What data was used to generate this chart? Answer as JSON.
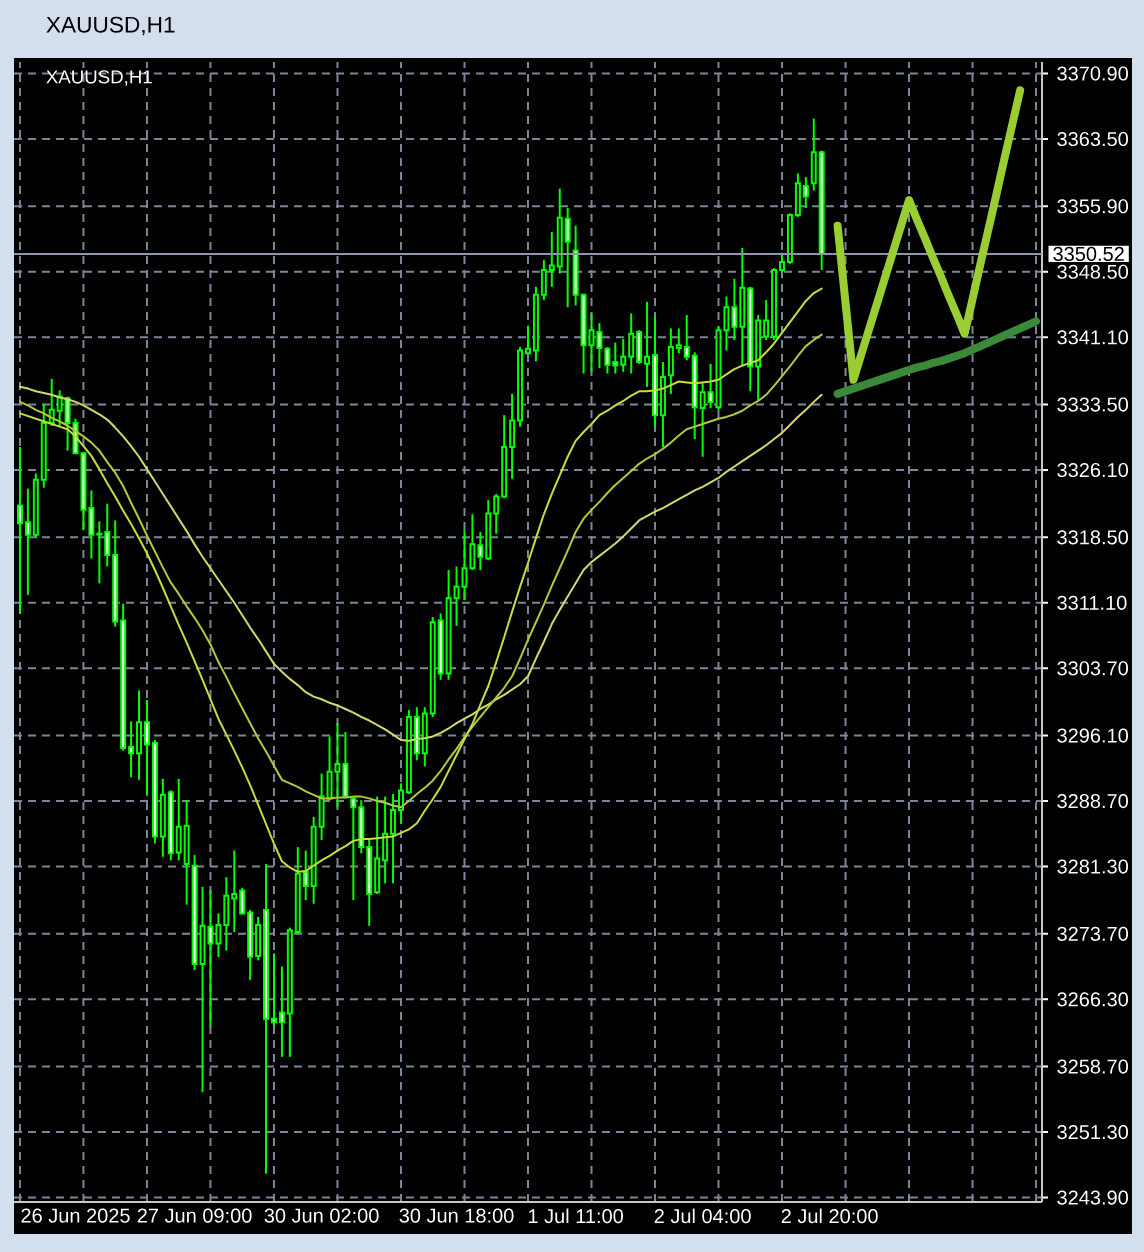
{
  "chart_data": {
    "type": "candlestick",
    "title": "XAUUSD,H1",
    "subtitle": "XAUUSD,H1",
    "color": "#00ff00",
    "categories": [
      null,
      null,
      null,
      null,
      null,
      null,
      null,
      "26 Jun 2025",
      null,
      null,
      null,
      null,
      null,
      null,
      null,
      null,
      null,
      null,
      null,
      null,
      null,
      null,
      "27 Jun 09:00",
      null,
      null,
      null,
      null,
      null,
      null,
      null,
      null,
      null,
      null,
      null,
      null,
      null,
      null,
      null,
      "30 Jun 02:00",
      null,
      null,
      null,
      null,
      null,
      null,
      null,
      null,
      null,
      null,
      null,
      null,
      null,
      null,
      null,
      null,
      "30 Jun 18:00",
      null,
      null,
      null,
      null,
      null,
      null,
      null,
      null,
      null,
      null,
      null,
      null,
      null,
      null,
      "1 Jul 11:00",
      null,
      null,
      null,
      null,
      null,
      null,
      null,
      null,
      null,
      null,
      null,
      null,
      null,
      null,
      null,
      "2 Jul 04:00",
      null,
      null,
      null,
      null,
      null,
      null,
      null,
      null,
      null,
      null,
      null,
      null,
      null,
      null,
      null,
      "2 Jul 20:00",
      null,
      null,
      null,
      null,
      null,
      null,
      null,
      null,
      null,
      null,
      null,
      null,
      null,
      null,
      null,
      null,
      null,
      null,
      null,
      null,
      null,
      null,
      null,
      null,
      null,
      null
    ],
    "ohlc": [
      [
        3322.1,
        3328.7,
        3309.9,
        3320.1
      ],
      [
        3320.2,
        3324.0,
        3312.0,
        3318.8
      ],
      [
        3318.8,
        3325.7,
        3318.4,
        3325.0
      ],
      [
        3325.0,
        3333.6,
        3324.1,
        3331.4
      ],
      [
        3331.4,
        3336.4,
        3331.1,
        3332.9
      ],
      [
        3332.8,
        3335.1,
        3331.0,
        3334.4
      ],
      [
        3334.2,
        3334.4,
        3328.3,
        3331.4
      ],
      [
        3331.4,
        3331.9,
        3327.9,
        3328.0
      ],
      [
        3328.0,
        3328.1,
        3319.3,
        3321.6
      ],
      [
        3321.8,
        3323.8,
        3316.1,
        3318.8
      ],
      [
        3318.9,
        3320.3,
        3313.3,
        3318.8
      ],
      [
        3319.1,
        3322.3,
        3315.2,
        3316.5
      ],
      [
        3316.5,
        3320.4,
        3308.4,
        3309.0
      ],
      [
        3309.1,
        3311.0,
        3294.4,
        3294.7
      ],
      [
        3294.8,
        3297.7,
        3291.4,
        3294.1
      ],
      [
        3294.1,
        3301.2,
        3291.1,
        3297.6
      ],
      [
        3297.6,
        3300.1,
        3289.5,
        3295.1
      ],
      [
        3295.3,
        3295.6,
        3283.9,
        3284.7
      ],
      [
        3284.7,
        3291.2,
        3282.4,
        3289.4
      ],
      [
        3289.7,
        3289.9,
        3282.0,
        3282.8
      ],
      [
        3282.9,
        3291.2,
        3282.0,
        3285.8
      ],
      [
        3281.6,
        3288.8,
        3277.0,
        3285.9
      ],
      [
        3281.4,
        3282.6,
        3269.6,
        3270.3
      ],
      [
        3270.3,
        3279.0,
        3255.8,
        3274.6
      ],
      [
        3274.5,
        3278.6,
        3263.2,
        3272.6
      ],
      [
        3272.6,
        3276.0,
        3271.1,
        3274.7
      ],
      [
        3274.7,
        3280.1,
        3271.8,
        3278.0
      ],
      [
        3277.7,
        3283.1,
        3273.9,
        3278.2
      ],
      [
        3278.6,
        3278.9,
        3275.9,
        3276.0
      ],
      [
        3276.1,
        3276.4,
        3268.5,
        3271.1
      ],
      [
        3271.2,
        3275.6,
        3270.7,
        3274.7
      ],
      [
        3276.4,
        3281.6,
        3246.6,
        3264.1
      ],
      [
        3264.1,
        3271.5,
        3263.2,
        3263.7
      ],
      [
        3264.8,
        3270.0,
        3259.8,
        3263.7
      ],
      [
        3264.7,
        3274.4,
        3259.8,
        3274.1
      ],
      [
        3273.9,
        3283.5,
        3273.7,
        3280.5
      ],
      [
        3280.7,
        3283.1,
        3277.5,
        3279.1
      ],
      [
        3279.1,
        3286.9,
        3277.1,
        3285.8
      ],
      [
        3285.8,
        3291.8,
        3284.3,
        3289.2
      ],
      [
        3289.0,
        3296.0,
        3288.8,
        3292.0
      ],
      [
        3292.0,
        3297.5,
        3288.0,
        3292.9
      ],
      [
        3292.9,
        3296.5,
        3289.0,
        3289.2
      ],
      [
        3289.0,
        3289.2,
        3277.5,
        3288.0
      ],
      [
        3288.0,
        3288.8,
        3282.8,
        3283.5
      ],
      [
        3283.5,
        3284.3,
        3274.6,
        3278.2
      ],
      [
        3278.4,
        3289.2,
        3278.2,
        3282.2
      ],
      [
        3282.0,
        3289.2,
        3279.4,
        3285.0
      ],
      [
        3285.0,
        3289.5,
        3279.4,
        3287.7
      ],
      [
        3287.7,
        3290.7,
        3286.2,
        3289.9
      ],
      [
        3289.7,
        3299.0,
        3289.5,
        3298.2
      ],
      [
        3298.2,
        3299.3,
        3293.3,
        3294.1
      ],
      [
        3294.1,
        3299.3,
        3292.6,
        3298.6
      ],
      [
        3298.6,
        3309.5,
        3298.2,
        3308.9
      ],
      [
        3309.1,
        3309.9,
        3302.4,
        3303.1
      ],
      [
        3303.1,
        3314.8,
        3302.4,
        3311.6
      ],
      [
        3311.6,
        3315.2,
        3308.5,
        3312.9
      ],
      [
        3312.9,
        3319.3,
        3311.4,
        3315.0
      ],
      [
        3315.0,
        3321.1,
        3314.8,
        3317.7
      ],
      [
        3317.6,
        3319.1,
        3314.8,
        3316.3
      ],
      [
        3316.1,
        3322.7,
        3315.9,
        3321.2
      ],
      [
        3321.2,
        3323.4,
        3318.9,
        3323.1
      ],
      [
        3323.1,
        3332.3,
        3322.9,
        3328.7
      ],
      [
        3328.7,
        3334.7,
        3325.1,
        3331.7
      ],
      [
        3331.7,
        3340.0,
        3331.0,
        3339.6
      ],
      [
        3339.3,
        3342.4,
        3339.2,
        3339.8
      ],
      [
        3339.6,
        3346.8,
        3338.4,
        3345.9
      ],
      [
        3345.9,
        3349.8,
        3345.3,
        3348.7
      ],
      [
        3348.7,
        3353.0,
        3346.8,
        3349.2
      ],
      [
        3349.1,
        3357.9,
        3348.3,
        3354.6
      ],
      [
        3354.5,
        3355.7,
        3344.5,
        3351.9
      ],
      [
        3350.9,
        3353.7,
        3344.7,
        3345.9
      ],
      [
        3345.9,
        3346.0,
        3337.0,
        3340.2
      ],
      [
        3340.2,
        3343.8,
        3337.2,
        3341.9
      ],
      [
        3341.7,
        3342.7,
        3337.6,
        3339.9
      ],
      [
        3339.8,
        3340.0,
        3337.0,
        3338.0
      ],
      [
        3338.3,
        3340.5,
        3337.0,
        3337.9
      ],
      [
        3338.0,
        3340.9,
        3337.2,
        3338.9
      ],
      [
        3338.9,
        3343.8,
        3337.0,
        3341.5
      ],
      [
        3341.7,
        3341.9,
        3338.1,
        3338.3
      ],
      [
        3338.1,
        3345.1,
        3335.5,
        3338.9
      ],
      [
        3339.1,
        3343.4,
        3331.0,
        3332.3
      ],
      [
        3332.3,
        3338.3,
        3328.7,
        3336.6
      ],
      [
        3336.8,
        3342.1,
        3334.7,
        3340.0
      ],
      [
        3339.9,
        3342.1,
        3339.3,
        3340.2
      ],
      [
        3340.0,
        3343.6,
        3338.5,
        3338.9
      ],
      [
        3339.0,
        3339.4,
        3329.6,
        3333.2
      ],
      [
        3333.1,
        3335.9,
        3327.6,
        3334.9
      ],
      [
        3334.9,
        3338.1,
        3333.1,
        3333.8
      ],
      [
        3333.2,
        3342.3,
        3332.9,
        3341.9
      ],
      [
        3341.9,
        3345.7,
        3339.6,
        3344.5
      ],
      [
        3344.5,
        3347.7,
        3340.8,
        3342.3
      ],
      [
        3342.3,
        3351.2,
        3337.8,
        3346.7
      ],
      [
        3346.6,
        3346.8,
        3335.0,
        3337.8
      ],
      [
        3337.8,
        3343.6,
        3334.0,
        3343.0
      ],
      [
        3341.2,
        3345.3,
        3340.8,
        3343.0
      ],
      [
        3341.2,
        3348.9,
        3340.8,
        3348.7
      ],
      [
        3348.7,
        3350.6,
        3348.5,
        3349.6
      ],
      [
        3349.6,
        3355.1,
        3349.4,
        3354.9
      ],
      [
        3354.9,
        3359.6,
        3354.7,
        3358.5
      ],
      [
        3358.2,
        3359.2,
        3355.7,
        3357.0
      ],
      [
        3358.5,
        3365.8,
        3357.7,
        3362.0
      ],
      [
        3362.0,
        3362.2,
        3348.7,
        3350.5
      ],
      null,
      null,
      null,
      null,
      null,
      null,
      null,
      null,
      null,
      null,
      null,
      null,
      null,
      null,
      null,
      null,
      null,
      null,
      null,
      null,
      null,
      null,
      null,
      null,
      null,
      null,
      null
    ],
    "series": [
      {
        "type": "line",
        "color": "#d6d66a",
        "values": [
          3335.5,
          3335.3,
          3335.0,
          3334.8,
          3334.6,
          3334.3,
          3334.1,
          3333.8,
          3333.4,
          3332.9,
          3332.4,
          3331.8,
          3330.9,
          3329.9,
          3328.8,
          3327.6,
          3326.2,
          3324.8,
          3323.4,
          3322.0,
          3320.6,
          3319.2,
          3317.7,
          3316.3,
          3315.0,
          3313.7,
          3312.4,
          3311.1,
          3309.7,
          3308.3,
          3307.0,
          3305.6,
          3304.2,
          3303.3,
          3302.5,
          3301.8,
          3301.0,
          3300.5,
          3300.2,
          3299.8,
          3299.5,
          3299.1,
          3298.7,
          3298.2,
          3297.8,
          3297.3,
          3296.8,
          3296.2,
          3295.6,
          3295.5,
          3295.7,
          3295.8,
          3296.0,
          3296.4,
          3296.9,
          3297.5,
          3298.0,
          3298.5,
          3299.1,
          3299.6,
          3300.2,
          3300.7,
          3301.3,
          3301.9,
          3302.8,
          3304.8,
          3306.7,
          3308.7,
          3310.3,
          3311.8,
          3313.3,
          3314.8,
          3315.7,
          3316.4,
          3317.1,
          3317.8,
          3318.6,
          3319.5,
          3320.4,
          3320.9,
          3321.4,
          3321.8,
          3322.3,
          3322.8,
          3323.3,
          3323.8,
          3324.2,
          3324.7,
          3325.2,
          3325.9,
          3326.5,
          3327.1,
          3327.7,
          3328.3,
          3328.9,
          3329.6,
          3330.3,
          3331.2,
          3332.1,
          3332.9,
          3333.8,
          3334.6,
          null,
          null,
          null,
          null,
          null,
          null,
          null,
          null,
          null,
          null,
          null,
          null,
          null,
          null,
          null,
          null,
          null,
          null,
          null,
          null,
          null,
          null,
          null,
          null,
          null,
          null,
          null
        ]
      },
      {
        "type": "line",
        "color": "#b4c83c",
        "values": [
          3333.8,
          3333.4,
          3332.9,
          3332.5,
          3332.0,
          3331.6,
          3331.1,
          3330.5,
          3329.9,
          3329.2,
          3328.3,
          3327.0,
          3325.8,
          3324.3,
          3322.4,
          3320.6,
          3318.7,
          3316.9,
          3315.1,
          3313.4,
          3312.1,
          3310.7,
          3309.4,
          3308.0,
          3306.4,
          3304.4,
          3302.7,
          3300.9,
          3299.2,
          3297.5,
          3295.8,
          3294.3,
          3292.7,
          3291.1,
          3290.7,
          3290.3,
          3289.8,
          3289.4,
          3289.0,
          3289.0,
          3289.1,
          3289.1,
          3289.2,
          3289.2,
          3289.0,
          3288.7,
          3288.5,
          3288.2,
          3288.0,
          3288.7,
          3289.5,
          3290.2,
          3291.0,
          3292.1,
          3293.4,
          3294.6,
          3295.9,
          3297.1,
          3298.2,
          3299.3,
          3300.4,
          3301.5,
          3302.8,
          3304.8,
          3306.9,
          3308.9,
          3310.9,
          3313.0,
          3315.0,
          3317.0,
          3319.1,
          3320.6,
          3321.6,
          3322.5,
          3323.5,
          3324.4,
          3325.2,
          3326.0,
          3326.8,
          3327.4,
          3327.9,
          3328.5,
          3329.2,
          3330.0,
          3330.7,
          3331.0,
          3331.3,
          3331.6,
          3331.9,
          3332.1,
          3332.4,
          3332.8,
          3333.4,
          3333.9,
          3334.6,
          3335.6,
          3336.7,
          3337.8,
          3339.0,
          3340.1,
          3340.8,
          3341.4,
          null,
          null,
          null,
          null,
          null,
          null,
          null,
          null,
          null,
          null,
          null,
          null,
          null,
          null,
          null,
          null,
          null,
          null,
          null,
          null,
          null,
          null,
          null,
          null,
          null,
          null,
          null
        ]
      },
      {
        "type": "line",
        "color": "#c8dc3c",
        "values": [
          3332.5,
          3332.2,
          3331.9,
          3331.6,
          3331.3,
          3331.0,
          3330.7,
          3329.9,
          3328.8,
          3327.7,
          3326.2,
          3324.6,
          3323.1,
          3321.5,
          3320.0,
          3318.4,
          3316.7,
          3314.8,
          3312.8,
          3310.7,
          3308.6,
          3306.6,
          3304.5,
          3302.4,
          3300.2,
          3298.0,
          3296.2,
          3294.4,
          3292.5,
          3290.5,
          3288.3,
          3286.1,
          3283.9,
          3281.9,
          3281.2,
          3280.7,
          3280.8,
          3281.4,
          3282.0,
          3282.5,
          3283.1,
          3283.6,
          3284.2,
          3284.4,
          3284.4,
          3284.5,
          3284.6,
          3284.7,
          3285.1,
          3285.5,
          3286.2,
          3287.6,
          3288.9,
          3290.3,
          3292.1,
          3293.9,
          3295.7,
          3297.4,
          3299.6,
          3301.7,
          3304.4,
          3307.2,
          3310.1,
          3312.9,
          3315.6,
          3318.4,
          3321.1,
          3323.4,
          3325.5,
          3327.6,
          3329.4,
          3330.4,
          3331.3,
          3332.3,
          3332.8,
          3333.4,
          3333.9,
          3334.5,
          3335.0,
          3335.0,
          3335.1,
          3335.3,
          3335.7,
          3336.1,
          3336.0,
          3335.9,
          3336.0,
          3336.1,
          3336.3,
          3336.9,
          3337.5,
          3337.9,
          3338.2,
          3338.5,
          3339.4,
          3340.4,
          3341.6,
          3342.8,
          3344.0,
          3345.2,
          3346.1,
          3346.6,
          null,
          null,
          null,
          null,
          null,
          null,
          null,
          null,
          null,
          null,
          null,
          null,
          null,
          null,
          null,
          null,
          null,
          null,
          null,
          null,
          null,
          null,
          null,
          null,
          null,
          null,
          null
        ]
      },
      {
        "type": "line",
        "color": "#9acd32",
        "values": [
          null,
          null,
          null,
          null,
          null,
          null,
          null,
          null,
          null,
          null,
          null,
          null,
          null,
          null,
          null,
          null,
          null,
          null,
          null,
          null,
          null,
          null,
          null,
          null,
          null,
          null,
          null,
          null,
          null,
          null,
          null,
          null,
          null,
          null,
          null,
          null,
          null,
          null,
          null,
          null,
          null,
          null,
          null,
          null,
          null,
          null,
          null,
          null,
          null,
          null,
          null,
          null,
          null,
          null,
          null,
          null,
          null,
          null,
          null,
          null,
          null,
          null,
          null,
          null,
          null,
          null,
          null,
          null,
          null,
          null,
          null,
          null,
          null,
          null,
          null,
          null,
          null,
          null,
          null,
          null,
          null,
          null,
          null,
          null,
          null,
          null,
          null,
          null,
          null,
          null,
          null,
          null,
          null,
          null,
          null,
          null,
          null,
          null,
          null,
          null,
          null,
          null,
          null,
          3353.7,
          3345.0,
          3336.3,
          3339.2,
          3342.1,
          3345.0,
          3347.9,
          3350.8,
          3353.7,
          3356.6,
          3354.4,
          3352.3,
          3350.1,
          3348.0,
          3345.8,
          3343.7,
          3341.5,
          3345.4,
          3349.4,
          3353.3,
          3357.2,
          3361.2,
          3365.1,
          3369.0,
          null,
          null
        ]
      },
      {
        "type": "line",
        "color": "#3a8a3a",
        "values": [
          null,
          null,
          null,
          null,
          null,
          null,
          null,
          null,
          null,
          null,
          null,
          null,
          null,
          null,
          null,
          null,
          null,
          null,
          null,
          null,
          null,
          null,
          null,
          null,
          null,
          null,
          null,
          null,
          null,
          null,
          null,
          null,
          null,
          null,
          null,
          null,
          null,
          null,
          null,
          null,
          null,
          null,
          null,
          null,
          null,
          null,
          null,
          null,
          null,
          null,
          null,
          null,
          null,
          null,
          null,
          null,
          null,
          null,
          null,
          null,
          null,
          null,
          null,
          null,
          null,
          null,
          null,
          null,
          null,
          null,
          null,
          null,
          null,
          null,
          null,
          null,
          null,
          null,
          null,
          null,
          null,
          null,
          null,
          null,
          null,
          null,
          null,
          null,
          null,
          null,
          null,
          null,
          null,
          null,
          null,
          null,
          null,
          null,
          null,
          null,
          null,
          null,
          null,
          3334.7,
          3335.0,
          3335.3,
          3335.6,
          3335.9,
          3336.2,
          3336.5,
          3336.8,
          3337.1,
          3337.4,
          3337.7,
          3337.9,
          3338.2,
          3338.4,
          3338.7,
          3339.0,
          3339.3,
          3339.7,
          3340.1,
          3340.5,
          3340.9,
          3341.3,
          3341.7,
          3342.1,
          3342.5,
          3342.9
        ]
      }
    ],
    "ylim": [
      3243.4,
      3372.2
    ],
    "yticks": [
      {
        "value": 3370.9,
        "label": "3370.90"
      },
      {
        "value": 3363.5,
        "label": "3363.50"
      },
      {
        "value": 3355.9,
        "label": "3355.90"
      },
      {
        "value": 3348.5,
        "label": "3348.50"
      },
      {
        "value": 3341.1,
        "label": "3341.10"
      },
      {
        "value": 3333.5,
        "label": "3333.50"
      },
      {
        "value": 3326.1,
        "label": "3326.10"
      },
      {
        "value": 3318.5,
        "label": "3318.50"
      },
      {
        "value": 3311.1,
        "label": "3311.10"
      },
      {
        "value": 3303.7,
        "label": "3303.70"
      },
      {
        "value": 3296.1,
        "label": "3296.10"
      },
      {
        "value": 3288.7,
        "label": "3288.70"
      },
      {
        "value": 3281.3,
        "label": "3281.30"
      },
      {
        "value": 3273.7,
        "label": "3273.70"
      },
      {
        "value": 3266.3,
        "label": "3266.30"
      },
      {
        "value": 3258.7,
        "label": "3258.70"
      },
      {
        "value": 3251.3,
        "label": "3251.30"
      },
      {
        "value": 3243.9,
        "label": "3243.90"
      }
    ],
    "grid": true,
    "ref_lines": [
      {
        "axis": "y",
        "value": 3350.52,
        "label": "3350.52",
        "color": "#8c96a8"
      }
    ]
  }
}
